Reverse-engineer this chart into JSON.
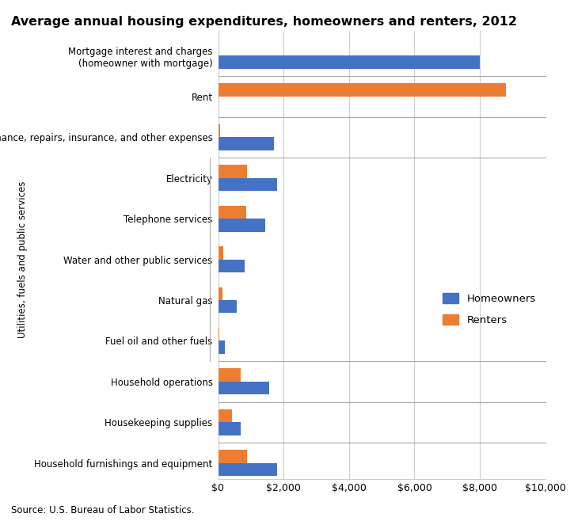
{
  "title": "Average annual housing expenditures, homeowners and renters, 2012",
  "categories": [
    "Mortgage interest and charges\n(homeowner with mortgage)",
    "Rent",
    "Maintenance, repairs, insurance, and other expenses",
    "Electricity",
    "Telephone services",
    "Water and other public services",
    "Natural gas",
    "Fuel oil and other fuels",
    "Household operations",
    "Housekeeping supplies",
    "Household furnishings and equipment"
  ],
  "homeowners": [
    8000,
    0,
    1700,
    1800,
    1450,
    800,
    580,
    200,
    1550,
    700,
    1800
  ],
  "renters": [
    0,
    8800,
    60,
    880,
    870,
    150,
    140,
    40,
    680,
    420,
    880
  ],
  "homeowner_color": "#4472C4",
  "renter_color": "#ED7D31",
  "xlim": [
    0,
    10000
  ],
  "xticks": [
    0,
    2000,
    4000,
    6000,
    8000,
    10000
  ],
  "xticklabels": [
    "$0",
    "$2,000",
    "$4,000",
    "$6,000",
    "$8,000",
    "$10,000"
  ],
  "utilities_label": "Utilities, fuels and public services",
  "source": "Source: U.S. Bureau of Labor Statistics.",
  "legend_labels": [
    "Homeowners",
    "Renters"
  ],
  "bar_height": 0.32,
  "figsize": [
    7.25,
    6.58
  ],
  "dpi": 100
}
